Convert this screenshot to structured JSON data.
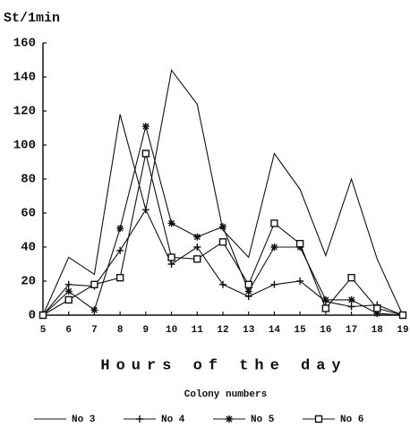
{
  "chart_data": {
    "type": "line",
    "y_label": "St/1min",
    "x_label": "Hours of the day",
    "legend_title": "Colony numbers",
    "x": [
      5,
      6,
      7,
      8,
      9,
      10,
      11,
      12,
      13,
      14,
      15,
      16,
      17,
      18,
      19
    ],
    "series": [
      {
        "name": "No 3",
        "color": "#111111",
        "marker": "none",
        "values": [
          0,
          34,
          24,
          118,
          62,
          144,
          124,
          50,
          34,
          95,
          74,
          35,
          80,
          33,
          0
        ]
      },
      {
        "name": "No 4",
        "color": "#111111",
        "marker": "plus",
        "values": [
          0,
          18,
          17,
          38,
          62,
          30,
          40,
          18,
          11,
          18,
          20,
          8,
          5,
          6,
          0
        ]
      },
      {
        "name": "No 5",
        "color": "#111111",
        "marker": "star",
        "values": [
          0,
          14,
          3,
          51,
          111,
          54,
          46,
          52,
          14,
          40,
          40,
          9,
          9,
          1,
          0
        ]
      },
      {
        "name": "No 6",
        "color": "#111111",
        "marker": "square",
        "values": [
          0,
          9,
          18,
          22,
          95,
          34,
          33,
          43,
          18,
          54,
          42,
          4,
          22,
          4,
          0
        ]
      }
    ],
    "xlim": [
      5,
      19
    ],
    "xticks": [
      5,
      6,
      7,
      8,
      9,
      10,
      11,
      12,
      13,
      14,
      15,
      16,
      17,
      18,
      19
    ],
    "ylim": [
      0,
      160
    ],
    "yticks": [
      0,
      20,
      40,
      60,
      80,
      100,
      120,
      140,
      160
    ],
    "grid": false
  }
}
